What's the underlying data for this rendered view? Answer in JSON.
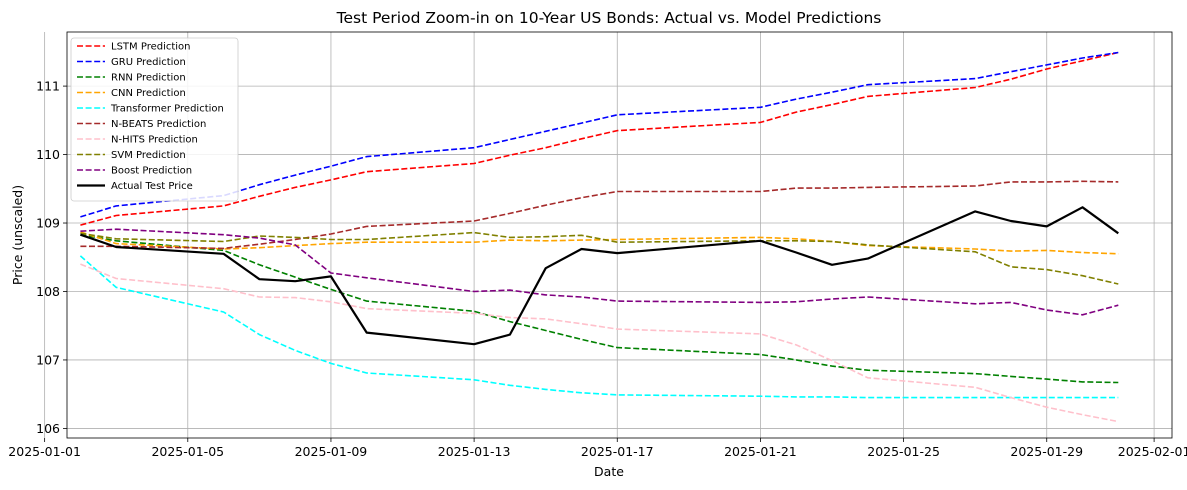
{
  "chart_data": {
    "type": "line",
    "title": "Test Period Zoom-in on 10-Year US Bonds: Actual vs. Model Predictions",
    "xlabel": "Date",
    "ylabel": "Price (unscaled)",
    "x_axis_type": "date",
    "xlim": [
      "2025-01-01 15:00",
      "2025-02-01 12:00"
    ],
    "ylim": [
      105.86,
      111.79
    ],
    "grid": true,
    "legend_position": "top-left",
    "x_ticks": [
      "2025-01-01",
      "2025-01-05",
      "2025-01-09",
      "2025-01-13",
      "2025-01-17",
      "2025-01-21",
      "2025-01-25",
      "2025-01-29",
      "2025-02-01"
    ],
    "y_ticks": [
      "106",
      "107",
      "108",
      "109",
      "110",
      "111"
    ],
    "x": [
      "2025-01-02",
      "2025-01-03",
      "2025-01-06",
      "2025-01-07",
      "2025-01-08",
      "2025-01-09",
      "2025-01-10",
      "2025-01-13",
      "2025-01-14",
      "2025-01-15",
      "2025-01-16",
      "2025-01-17",
      "2025-01-21",
      "2025-01-22",
      "2025-01-23",
      "2025-01-24",
      "2025-01-27",
      "2025-01-28",
      "2025-01-29",
      "2025-01-30",
      "2025-01-31"
    ],
    "series": [
      {
        "name": "LSTM Prediction",
        "color": "#ff0000",
        "style": "dashed",
        "values": [
          108.97,
          109.11,
          109.25,
          109.39,
          109.52,
          109.63,
          109.75,
          109.87,
          109.99,
          110.1,
          110.23,
          110.35,
          110.47,
          110.62,
          110.73,
          110.85,
          110.98,
          111.1,
          111.25,
          111.37,
          111.49
        ]
      },
      {
        "name": "GRU Prediction",
        "color": "#0000ff",
        "style": "dashed",
        "values": [
          109.09,
          109.25,
          109.4,
          109.56,
          109.7,
          109.83,
          109.97,
          110.1,
          110.22,
          110.34,
          110.46,
          110.58,
          110.69,
          110.81,
          110.91,
          111.02,
          111.11,
          111.21,
          111.31,
          111.41,
          111.49
        ]
      },
      {
        "name": "RNN Prediction",
        "color": "#008000",
        "style": "dashed",
        "values": [
          108.83,
          108.74,
          108.6,
          108.39,
          108.21,
          108.03,
          107.86,
          107.71,
          107.56,
          107.43,
          107.3,
          107.18,
          107.08,
          107.0,
          106.91,
          106.85,
          106.8,
          106.76,
          106.72,
          106.68,
          106.67
        ]
      },
      {
        "name": "CNN Prediction",
        "color": "#ffa500",
        "style": "dashed",
        "values": [
          108.87,
          108.7,
          108.62,
          108.64,
          108.67,
          108.7,
          108.72,
          108.72,
          108.75,
          108.74,
          108.75,
          108.76,
          108.79,
          108.77,
          108.73,
          108.67,
          108.62,
          108.59,
          108.6,
          108.57,
          108.55
        ]
      },
      {
        "name": "Transformer Prediction",
        "color": "#00ffff",
        "style": "dashed",
        "values": [
          108.52,
          108.06,
          107.7,
          107.37,
          107.14,
          106.95,
          106.81,
          106.71,
          106.63,
          106.57,
          106.52,
          106.49,
          106.47,
          106.46,
          106.46,
          106.45,
          106.45,
          106.45,
          106.45,
          106.45,
          106.45
        ]
      },
      {
        "name": "N-BEATS Prediction",
        "color": "#a52a2a",
        "style": "dashed",
        "values": [
          108.66,
          108.66,
          108.63,
          108.69,
          108.76,
          108.84,
          108.95,
          109.03,
          109.14,
          109.26,
          109.37,
          109.46,
          109.46,
          109.51,
          109.51,
          109.52,
          109.54,
          109.6,
          109.6,
          109.61,
          109.6
        ]
      },
      {
        "name": "N-HITS Prediction",
        "color": "#ffc0cb",
        "style": "dashed",
        "values": [
          108.4,
          108.19,
          108.04,
          107.92,
          107.91,
          107.85,
          107.75,
          107.68,
          107.62,
          107.6,
          107.53,
          107.45,
          107.38,
          107.22,
          106.99,
          106.74,
          106.6,
          106.45,
          106.31,
          106.2,
          106.1
        ]
      },
      {
        "name": "SVM Prediction",
        "color": "#808000",
        "style": "dashed",
        "values": [
          108.85,
          108.77,
          108.73,
          108.81,
          108.79,
          108.76,
          108.76,
          108.86,
          108.79,
          108.8,
          108.82,
          108.72,
          108.74,
          108.74,
          108.73,
          108.68,
          108.58,
          108.36,
          108.32,
          108.23,
          108.11
        ]
      },
      {
        "name": "Boost Prediction",
        "color": "#800080",
        "style": "dashed",
        "values": [
          108.88,
          108.91,
          108.83,
          108.78,
          108.68,
          108.27,
          108.2,
          108.0,
          108.02,
          107.95,
          107.92,
          107.86,
          107.84,
          107.85,
          107.89,
          107.92,
          107.82,
          107.84,
          107.73,
          107.66,
          107.8
        ]
      },
      {
        "name": "Actual Test Price",
        "color": "#000000",
        "style": "solid",
        "values": [
          108.83,
          108.65,
          108.55,
          108.18,
          108.15,
          108.22,
          107.4,
          107.23,
          107.37,
          108.34,
          108.62,
          108.56,
          108.74,
          108.57,
          108.39,
          108.48,
          109.17,
          109.03,
          108.95,
          109.23,
          108.85
        ]
      }
    ]
  }
}
